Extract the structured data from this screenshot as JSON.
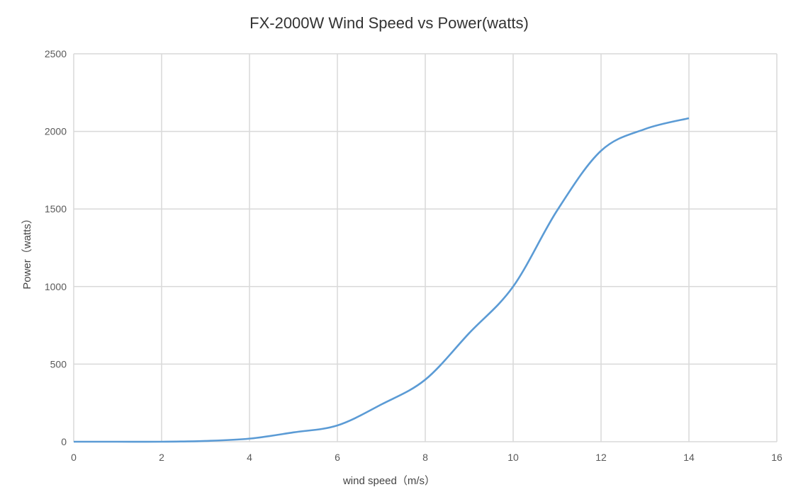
{
  "chart_data": {
    "type": "line",
    "title": "FX-2000W Wind Speed vs Power(watts)",
    "xlabel": "wind speed（m/s）",
    "ylabel": "Power（watts）",
    "xlim": [
      0,
      16
    ],
    "ylim": [
      0,
      2500
    ],
    "xticks": [
      0,
      2,
      4,
      6,
      8,
      10,
      12,
      14,
      16
    ],
    "yticks": [
      0,
      500,
      1000,
      1500,
      2000,
      2500
    ],
    "grid": true,
    "legend": "none",
    "series": [
      {
        "name": "Power",
        "color": "#5b9bd5",
        "x": [
          0,
          1,
          2,
          3,
          4,
          5,
          6,
          7,
          8,
          9,
          10,
          11,
          12,
          13,
          14
        ],
        "y": [
          0,
          0,
          0,
          5,
          20,
          60,
          105,
          240,
          400,
          700,
          1000,
          1490,
          1875,
          2015,
          2085
        ]
      }
    ]
  }
}
